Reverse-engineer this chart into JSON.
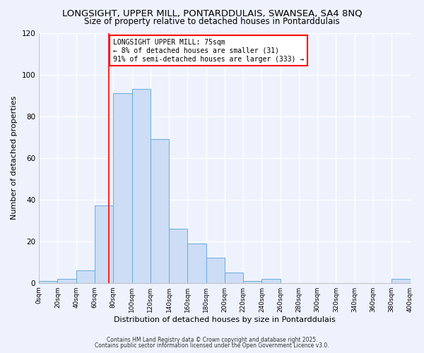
{
  "title": "LONGSIGHT, UPPER MILL, PONTARDDULAIS, SWANSEA, SA4 8NQ",
  "subtitle": "Size of property relative to detached houses in Pontarddulais",
  "xlabel": "Distribution of detached houses by size in Pontarddulais",
  "ylabel": "Number of detached properties",
  "bin_edges": [
    0,
    20,
    40,
    60,
    80,
    100,
    120,
    140,
    160,
    180,
    200,
    220,
    240,
    260,
    280,
    300,
    320,
    340,
    360,
    380,
    400
  ],
  "bar_heights": [
    1,
    2,
    6,
    37,
    91,
    93,
    69,
    26,
    19,
    12,
    5,
    1,
    2,
    0,
    0,
    0,
    0,
    0,
    0,
    2
  ],
  "bar_color": "#ccddf5",
  "bar_edge_color": "#6aacdc",
  "vline_x": 75,
  "vline_color": "red",
  "ylim": [
    0,
    120
  ],
  "annotation_title": "LONGSIGHT UPPER MILL: 75sqm",
  "annotation_line1": "← 8% of detached houses are smaller (31)",
  "annotation_line2": "91% of semi-detached houses are larger (333) →",
  "annotation_box_color": "#ffffff",
  "annotation_box_edge": "red",
  "footnote1": "Contains HM Land Registry data © Crown copyright and database right 2025.",
  "footnote2": "Contains public sector information licensed under the Open Government Licence v3.0.",
  "background_color": "#eef2fc",
  "grid_color": "#ffffff",
  "title_fontsize": 9.5,
  "subtitle_fontsize": 8.5,
  "tick_labels": [
    "0sqm",
    "20sqm",
    "40sqm",
    "60sqm",
    "80sqm",
    "100sqm",
    "120sqm",
    "140sqm",
    "160sqm",
    "180sqm",
    "200sqm",
    "220sqm",
    "240sqm",
    "260sqm",
    "280sqm",
    "300sqm",
    "320sqm",
    "340sqm",
    "360sqm",
    "380sqm",
    "400sqm"
  ]
}
